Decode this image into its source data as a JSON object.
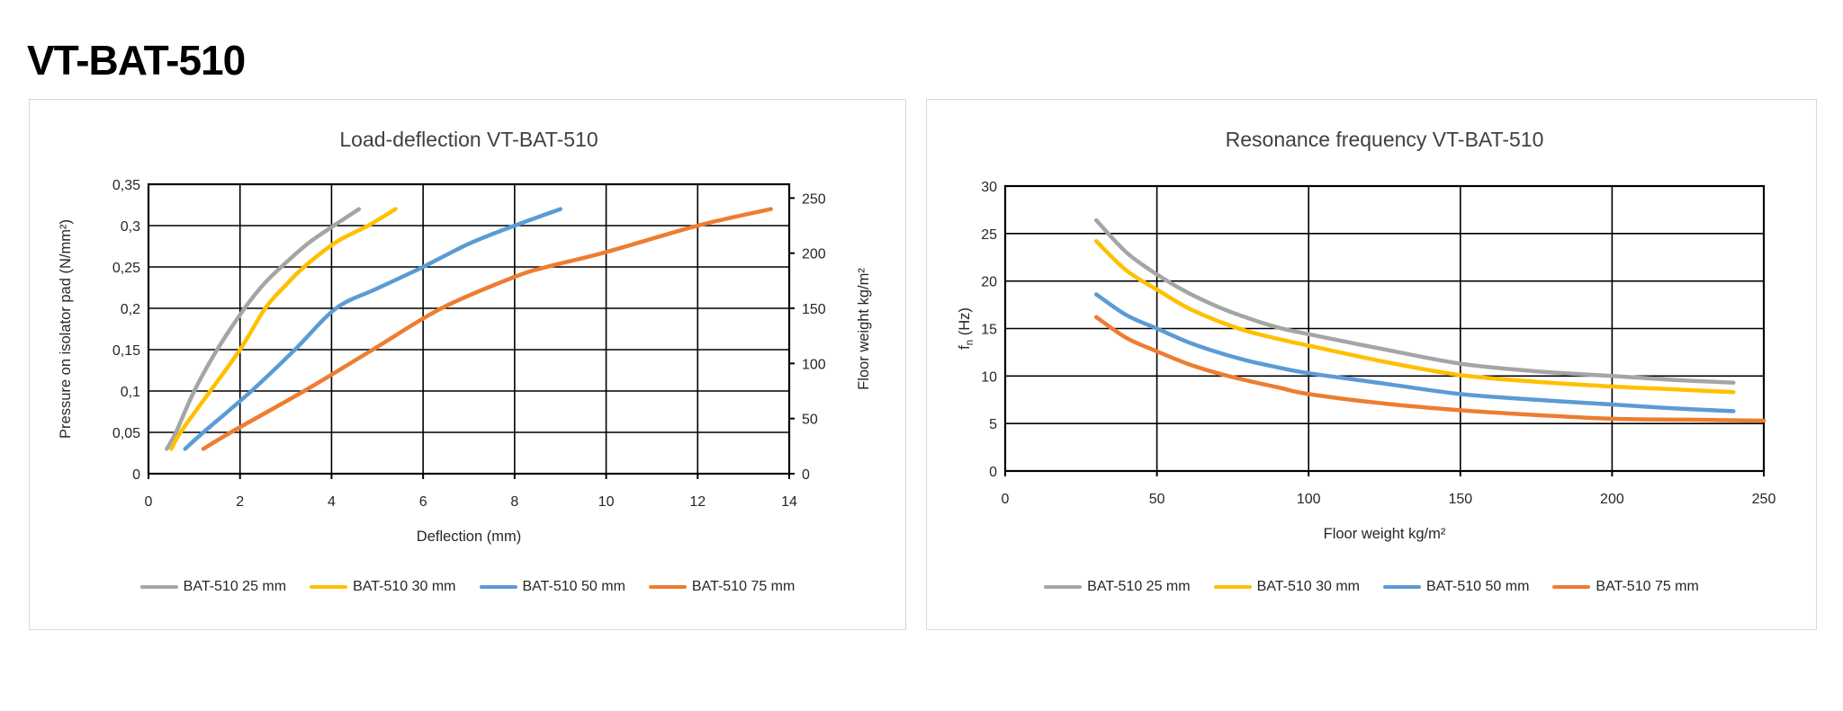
{
  "page_title": "VT-BAT-510",
  "chart_data": [
    {
      "type": "line",
      "title": "Load-deflection VT-BAT-510",
      "xlabel": "Deflection (mm)",
      "ylabel": "Pressure on isolator pad (N/mm²)",
      "ylabel_right": "Floor weight kg/m²",
      "xlim": [
        0,
        14
      ],
      "x_ticks": [
        0,
        2,
        4,
        6,
        8,
        10,
        12,
        14
      ],
      "ylim": [
        0,
        0.35
      ],
      "y_tick_labels": [
        "0",
        "0,05",
        "0,1",
        "0,15",
        "0,2",
        "0,25",
        "0,3",
        "0,35"
      ],
      "y_right_ticks": [
        0,
        50,
        100,
        150,
        200,
        250
      ],
      "y_right_max": 262.5,
      "grid": true,
      "legend_position": "bottom",
      "series": [
        {
          "name": "BAT-510 25 mm",
          "color": "#A5A5A5",
          "points": [
            [
              0.4,
              0.03
            ],
            [
              0.6,
              0.05
            ],
            [
              1.0,
              0.1
            ],
            [
              1.5,
              0.15
            ],
            [
              2.1,
              0.2
            ],
            [
              2.5,
              0.228
            ],
            [
              2.9,
              0.25
            ],
            [
              3.5,
              0.279
            ],
            [
              4.05,
              0.3
            ],
            [
              4.6,
              0.32
            ]
          ]
        },
        {
          "name": "BAT-510 30 mm",
          "color": "#FFC000",
          "points": [
            [
              0.5,
              0.03
            ],
            [
              0.7,
              0.05
            ],
            [
              1.35,
              0.1
            ],
            [
              2.0,
              0.15
            ],
            [
              2.55,
              0.2
            ],
            [
              3.0,
              0.228
            ],
            [
              3.4,
              0.25
            ],
            [
              4.1,
              0.28
            ],
            [
              4.8,
              0.3
            ],
            [
              5.4,
              0.32
            ]
          ]
        },
        {
          "name": "BAT-510 50 mm",
          "color": "#5B9BD5",
          "points": [
            [
              0.8,
              0.03
            ],
            [
              1.2,
              0.05
            ],
            [
              2.25,
              0.1
            ],
            [
              3.2,
              0.15
            ],
            [
              4.1,
              0.2
            ],
            [
              5.0,
              0.224
            ],
            [
              6.0,
              0.25
            ],
            [
              7.0,
              0.278
            ],
            [
              8.0,
              0.3
            ],
            [
              9.0,
              0.32
            ]
          ]
        },
        {
          "name": "BAT-510 75 mm",
          "color": "#ED7D31",
          "points": [
            [
              1.2,
              0.03
            ],
            [
              1.8,
              0.05
            ],
            [
              3.4,
              0.1
            ],
            [
              4.9,
              0.15
            ],
            [
              6.4,
              0.2
            ],
            [
              8.0,
              0.238
            ],
            [
              8.7,
              0.25
            ],
            [
              10.0,
              0.268
            ],
            [
              12.0,
              0.3
            ],
            [
              13.6,
              0.32
            ]
          ]
        }
      ]
    },
    {
      "type": "line",
      "title": "Resonance frequency VT-BAT-510",
      "xlabel": "Floor weight kg/m²",
      "ylabel": "fₙ (Hz)",
      "xlim": [
        0,
        250
      ],
      "x_ticks": [
        0,
        50,
        100,
        150,
        200,
        250
      ],
      "ylim": [
        0,
        30
      ],
      "y_tick_labels": [
        "0",
        "5",
        "10",
        "15",
        "20",
        "25",
        "30"
      ],
      "grid": true,
      "legend_position": "bottom",
      "series": [
        {
          "name": "BAT-510 25 mm",
          "color": "#A5A5A5",
          "points": [
            [
              30,
              26.4
            ],
            [
              40,
              23.0
            ],
            [
              50,
              20.7
            ],
            [
              60,
              18.8
            ],
            [
              70,
              17.3
            ],
            [
              80,
              16.1
            ],
            [
              90,
              15.1
            ],
            [
              100,
              14.4
            ],
            [
              125,
              12.8
            ],
            [
              150,
              11.3
            ],
            [
              175,
              10.5
            ],
            [
              200,
              10.0
            ],
            [
              220,
              9.6
            ],
            [
              240,
              9.3
            ]
          ]
        },
        {
          "name": "BAT-510 30 mm",
          "color": "#FFC000",
          "points": [
            [
              30,
              24.2
            ],
            [
              40,
              21.1
            ],
            [
              50,
              19.1
            ],
            [
              60,
              17.2
            ],
            [
              70,
              15.8
            ],
            [
              80,
              14.7
            ],
            [
              90,
              13.9
            ],
            [
              100,
              13.2
            ],
            [
              125,
              11.5
            ],
            [
              150,
              10.1
            ],
            [
              175,
              9.4
            ],
            [
              200,
              8.9
            ],
            [
              220,
              8.6
            ],
            [
              240,
              8.3
            ]
          ]
        },
        {
          "name": "BAT-510 50 mm",
          "color": "#5B9BD5",
          "points": [
            [
              30,
              18.6
            ],
            [
              40,
              16.4
            ],
            [
              50,
              15.0
            ],
            [
              60,
              13.6
            ],
            [
              70,
              12.5
            ],
            [
              80,
              11.6
            ],
            [
              90,
              10.9
            ],
            [
              100,
              10.3
            ],
            [
              125,
              9.2
            ],
            [
              150,
              8.1
            ],
            [
              175,
              7.5
            ],
            [
              200,
              7.0
            ],
            [
              220,
              6.6
            ],
            [
              240,
              6.3
            ]
          ]
        },
        {
          "name": "BAT-510 75 mm",
          "color": "#ED7D31",
          "points": [
            [
              30,
              16.2
            ],
            [
              40,
              14.0
            ],
            [
              50,
              12.6
            ],
            [
              60,
              11.3
            ],
            [
              70,
              10.3
            ],
            [
              80,
              9.5
            ],
            [
              90,
              8.8
            ],
            [
              100,
              8.1
            ],
            [
              125,
              7.1
            ],
            [
              150,
              6.4
            ],
            [
              175,
              5.9
            ],
            [
              200,
              5.5
            ],
            [
              225,
              5.4
            ],
            [
              250,
              5.3
            ]
          ]
        }
      ]
    }
  ],
  "style": {
    "grid_color": "#000000",
    "border_color": "#000000",
    "panel_border_color": "#d9d9d9",
    "title_color": "#404040",
    "text_color": "#262626"
  }
}
